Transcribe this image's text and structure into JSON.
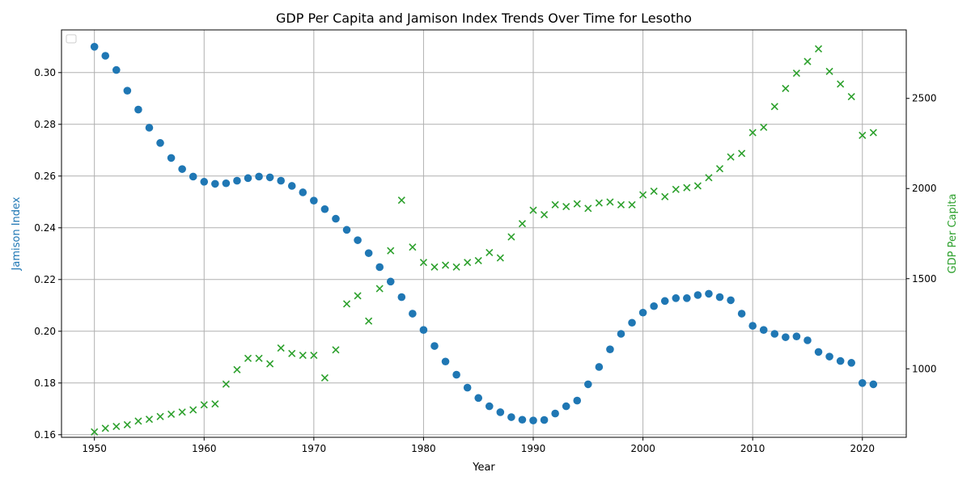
{
  "chart_data": {
    "type": "scatter",
    "title": "GDP Per Capita and Jamison Index Trends Over Time for Lesotho",
    "xlabel": "Year",
    "ylabel_left": "Jamison Index",
    "ylabel_right": "GDP Per Capita",
    "xlim": [
      1947,
      2024
    ],
    "ylim_left": [
      0.159,
      0.3165
    ],
    "ylim_right": [
      620,
      2880
    ],
    "x_ticks": [
      1950,
      1960,
      1970,
      1980,
      1990,
      2000,
      2010,
      2020
    ],
    "y_ticks_left": [
      0.16,
      0.18,
      0.2,
      0.22,
      0.24,
      0.26,
      0.28,
      0.3
    ],
    "y_ticks_right": [
      1000,
      1500,
      2000,
      2500
    ],
    "y_tick_labels_left": [
      "0.16",
      "0.18",
      "0.20",
      "0.22",
      "0.24",
      "0.26",
      "0.28",
      "0.30"
    ],
    "y_tick_labels_right": [
      "1000",
      "1500",
      "2000",
      "2500"
    ],
    "grid": true,
    "legend": "top-left (empty)",
    "colors": {
      "jamison": "#1f77b4",
      "gdp": "#2ca02c"
    },
    "years": [
      1950,
      1951,
      1952,
      1953,
      1954,
      1955,
      1956,
      1957,
      1958,
      1959,
      1960,
      1961,
      1962,
      1963,
      1964,
      1965,
      1966,
      1967,
      1968,
      1969,
      1970,
      1971,
      1972,
      1973,
      1974,
      1975,
      1976,
      1977,
      1978,
      1979,
      1980,
      1981,
      1982,
      1983,
      1984,
      1985,
      1986,
      1987,
      1988,
      1989,
      1990,
      1991,
      1992,
      1993,
      1994,
      1995,
      1996,
      1997,
      1998,
      1999,
      2000,
      2001,
      2002,
      2003,
      2004,
      2005,
      2006,
      2007,
      2008,
      2009,
      2010,
      2011,
      2012,
      2013,
      2014,
      2015,
      2016,
      2017,
      2018,
      2019,
      2020,
      2021
    ],
    "series": [
      {
        "name": "Jamison Index",
        "marker": "circle",
        "axis": "left",
        "values": [
          0.31,
          0.3065,
          0.301,
          0.293,
          0.2857,
          0.2787,
          0.2728,
          0.267,
          0.2627,
          0.2598,
          0.2578,
          0.257,
          0.2572,
          0.2582,
          0.2592,
          0.2598,
          0.2595,
          0.2582,
          0.2562,
          0.2537,
          0.2505,
          0.2472,
          0.2435,
          0.2392,
          0.2352,
          0.2302,
          0.2248,
          0.2192,
          0.2132,
          0.2068,
          0.2005,
          0.1943,
          0.1883,
          0.1832,
          0.1782,
          0.1742,
          0.171,
          0.1687,
          0.1668,
          0.1658,
          0.1655,
          0.1657,
          0.1682,
          0.171,
          0.1732,
          0.1795,
          0.1862,
          0.193,
          0.199,
          0.2033,
          0.2072,
          0.2097,
          0.2117,
          0.2128,
          0.2128,
          0.214,
          0.2145,
          0.2132,
          0.212,
          0.2068,
          0.2021,
          0.2005,
          0.199,
          0.1977,
          0.198,
          0.1965,
          0.192,
          0.1902,
          0.1885,
          0.1878,
          0.18,
          0.1795
        ]
      },
      {
        "name": "GDP Per Capita",
        "marker": "x",
        "axis": "right",
        "values": [
          650,
          670,
          680,
          690,
          710,
          720,
          735,
          748,
          760,
          772,
          800,
          805,
          915,
          995,
          1058,
          1058,
          1028,
          1115,
          1085,
          1075,
          1075,
          950,
          1105,
          1360,
          1405,
          1265,
          1445,
          1655,
          1935,
          1675,
          1590,
          1565,
          1575,
          1565,
          1590,
          1600,
          1645,
          1615,
          1732,
          1805,
          1880,
          1855,
          1910,
          1900,
          1915,
          1890,
          1920,
          1925,
          1910,
          1910,
          1965,
          1985,
          1955,
          1995,
          2005,
          2015,
          2060,
          2110,
          2175,
          2195,
          2310,
          2340,
          2455,
          2555,
          2640,
          2705,
          2775,
          2650,
          2580,
          2510,
          2295,
          2310
        ]
      }
    ]
  }
}
